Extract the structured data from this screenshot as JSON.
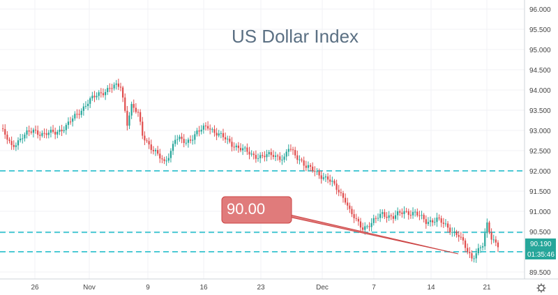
{
  "chart_data": {
    "type": "candlestick",
    "title": "US Dollar Index",
    "ylim": [
      89.4,
      96.1
    ],
    "y_ticks": [
      "96.000",
      "95.500",
      "95.000",
      "94.500",
      "94.000",
      "93.500",
      "93.000",
      "92.500",
      "92.000",
      "91.500",
      "91.000",
      "90.500",
      "90.000",
      "89.500"
    ],
    "x_ticks": [
      "26",
      "Nov",
      "9",
      "16",
      "23",
      "Dec",
      "7",
      "14",
      "21"
    ],
    "horizontal_levels": [
      92.0,
      90.48,
      90.0
    ],
    "annotation": {
      "text": "90.00",
      "target_y": 90.0
    },
    "last_price": "90.190",
    "countdown": "01:35:46",
    "close_path": [
      [
        0,
        93.05
      ],
      [
        5,
        92.6
      ],
      [
        10,
        92.85
      ],
      [
        15,
        93.0
      ],
      [
        20,
        92.9
      ],
      [
        25,
        92.95
      ],
      [
        30,
        93.1
      ],
      [
        35,
        93.4
      ],
      [
        40,
        93.7
      ],
      [
        45,
        93.9
      ],
      [
        50,
        94.05
      ],
      [
        55,
        94.1
      ],
      [
        58,
        93.2
      ],
      [
        60,
        93.6
      ],
      [
        63,
        93.4
      ],
      [
        65,
        92.9
      ],
      [
        70,
        92.5
      ],
      [
        75,
        92.2
      ],
      [
        78,
        92.5
      ],
      [
        80,
        92.8
      ],
      [
        85,
        92.7
      ],
      [
        90,
        92.95
      ],
      [
        95,
        93.1
      ],
      [
        100,
        92.9
      ],
      [
        105,
        92.7
      ],
      [
        110,
        92.55
      ],
      [
        115,
        92.4
      ],
      [
        120,
        92.35
      ],
      [
        125,
        92.4
      ],
      [
        130,
        92.3
      ],
      [
        132,
        92.55
      ],
      [
        135,
        92.4
      ],
      [
        138,
        92.25
      ],
      [
        140,
        92.1
      ],
      [
        145,
        91.95
      ],
      [
        150,
        91.8
      ],
      [
        155,
        91.5
      ],
      [
        158,
        91.3
      ],
      [
        160,
        91.0
      ],
      [
        163,
        90.75
      ],
      [
        166,
        90.6
      ],
      [
        170,
        90.7
      ],
      [
        175,
        90.95
      ],
      [
        180,
        90.85
      ],
      [
        185,
        91.0
      ],
      [
        190,
        90.95
      ],
      [
        195,
        90.75
      ],
      [
        200,
        90.8
      ],
      [
        205,
        90.6
      ],
      [
        210,
        90.4
      ],
      [
        213,
        90.1
      ],
      [
        216,
        89.85
      ],
      [
        218,
        90.0
      ],
      [
        221,
        90.15
      ],
      [
        223,
        90.65
      ],
      [
        225,
        90.35
      ],
      [
        228,
        90.19
      ]
    ],
    "colors": {
      "up": "#26a69a",
      "down": "#e04b4b",
      "level": "#4cc9d4",
      "callout": "#e07b7b"
    }
  }
}
